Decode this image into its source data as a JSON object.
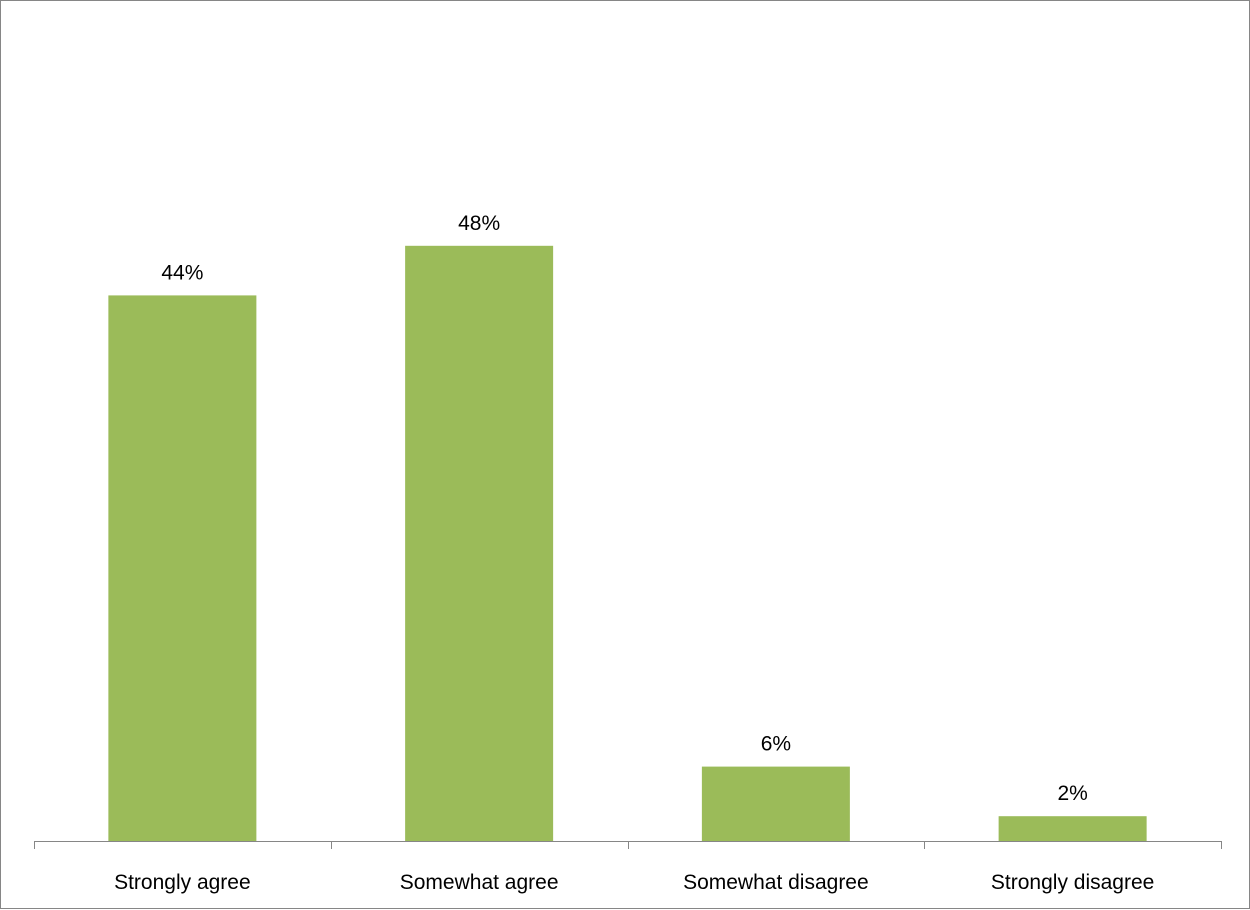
{
  "chart_data": {
    "type": "bar",
    "categories": [
      "Strongly agree",
      "Somewhat agree",
      "Somewhat disagree",
      "Strongly disagree"
    ],
    "values": [
      44,
      48,
      6,
      2
    ],
    "data_labels": [
      "44%",
      "48%",
      "6%",
      "2%"
    ],
    "title": "",
    "xlabel": "",
    "ylabel": "",
    "ylim": [
      0,
      50
    ],
    "grid": false,
    "legend": "none",
    "bar_color": "#9bbb59",
    "axis_color": "#868686",
    "border_color": "#868686"
  }
}
